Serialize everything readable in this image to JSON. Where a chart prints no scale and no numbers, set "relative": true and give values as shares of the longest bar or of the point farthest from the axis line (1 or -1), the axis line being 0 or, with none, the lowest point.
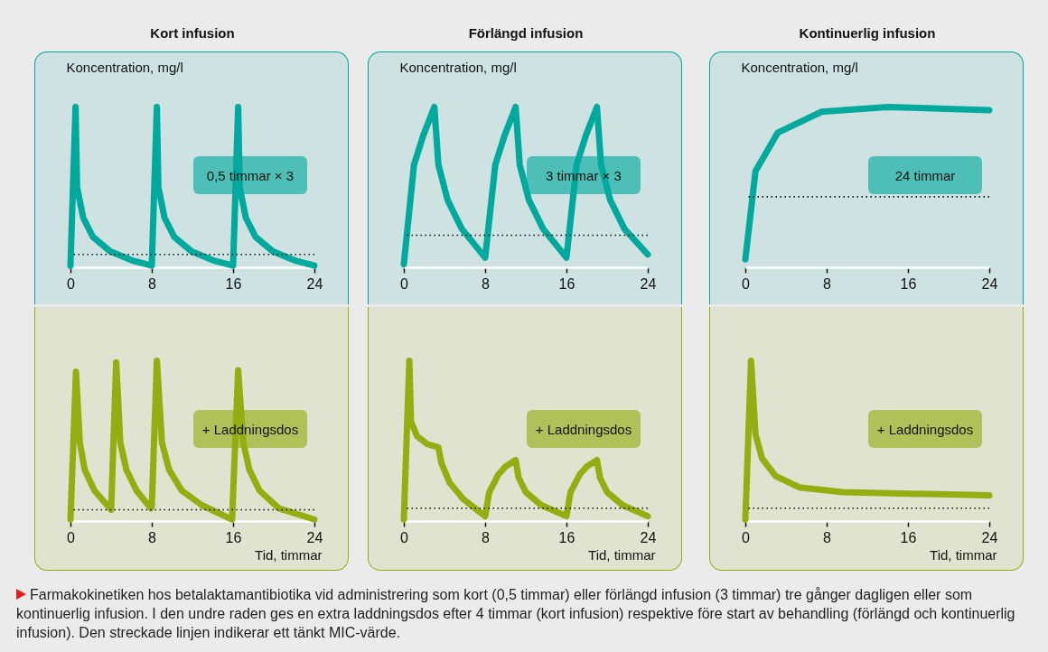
{
  "chart_data": [
    {
      "type": "line",
      "title": "Kort infusion",
      "ylabel": "Koncentration, mg/l",
      "relative": true,
      "color": "#00a99d",
      "xlim": [
        0,
        24
      ],
      "xticks": [
        0,
        8,
        16,
        24
      ],
      "x": [
        0,
        0.5,
        0.65,
        1.25,
        2.2,
        3.9,
        6.2,
        8,
        8.5,
        8.65,
        9.25,
        10.2,
        11.9,
        14.2,
        16,
        16.5,
        16.65,
        17.25,
        18.2,
        19.9,
        22.2,
        24
      ],
      "values": [
        0.01,
        1,
        0.5,
        0.31,
        0.19,
        0.1,
        0.04,
        0.01,
        1,
        0.5,
        0.31,
        0.19,
        0.1,
        0.04,
        0.01,
        1,
        0.5,
        0.31,
        0.19,
        0.1,
        0.04,
        0.01
      ],
      "ref_lines": [
        {
          "axis": "y",
          "value": 0.08,
          "line_style": "dotted"
        }
      ],
      "annotations": [
        "0,5 timmar × 3"
      ]
    },
    {
      "type": "line",
      "title": "Förlängd infusion",
      "ylabel": "Koncentration, mg/l",
      "relative": true,
      "color": "#00a99d",
      "xlim": [
        0,
        24
      ],
      "xticks": [
        0,
        8,
        16,
        24
      ],
      "x": [
        0,
        1,
        1.9,
        3,
        3.4,
        4.3,
        5.7,
        8,
        9,
        9.9,
        11,
        11.4,
        12.3,
        13.7,
        16,
        17,
        17.9,
        19,
        19.4,
        20.3,
        21.7,
        24
      ],
      "values": [
        0.02,
        0.64,
        0.82,
        1,
        0.64,
        0.42,
        0.24,
        0.06,
        0.64,
        0.82,
        1,
        0.64,
        0.42,
        0.24,
        0.06,
        0.64,
        0.82,
        1,
        0.64,
        0.42,
        0.24,
        0.08
      ],
      "ref_lines": [
        {
          "axis": "y",
          "value": 0.2,
          "line_style": "dotted"
        }
      ],
      "annotations": [
        "3 timmar × 3"
      ]
    },
    {
      "type": "line",
      "title": "Kontinuerlig infusion",
      "ylabel": "Koncentration, mg/l",
      "relative": true,
      "color": "#00a99d",
      "xlim": [
        0,
        24
      ],
      "xticks": [
        0,
        8,
        16,
        24
      ],
      "x": [
        0,
        1,
        3.2,
        7.5,
        14,
        24
      ],
      "values": [
        0.05,
        0.6,
        0.84,
        0.97,
        1,
        0.98
      ],
      "ref_lines": [
        {
          "axis": "y",
          "value": 0.44,
          "line_style": "dotted"
        }
      ],
      "annotations": [
        "24 timmar"
      ]
    },
    {
      "type": "line",
      "xlabel": "Tid, timmar",
      "relative": true,
      "color": "#94ad10",
      "xlim": [
        0,
        24
      ],
      "xticks": [
        0,
        8,
        16,
        24
      ],
      "x": [
        0,
        0.54,
        0.92,
        1.4,
        2.36,
        4,
        4.5,
        4.9,
        5.5,
        6.5,
        7.9,
        8,
        8.5,
        9,
        9.7,
        10.95,
        12.9,
        15.9,
        16.5,
        17,
        17.6,
        18.6,
        20.5,
        24
      ],
      "values": [
        0.01,
        0.93,
        0.49,
        0.32,
        0.19,
        0.07,
        0.99,
        0.49,
        0.32,
        0.19,
        0.08,
        0.09,
        1,
        0.49,
        0.32,
        0.19,
        0.1,
        0.01,
        0.94,
        0.49,
        0.32,
        0.19,
        0.08,
        0.01
      ],
      "ref_lines": [
        {
          "axis": "y",
          "value": 0.07,
          "line_style": "dotted"
        }
      ],
      "annotations": [
        "+ Laddningsdos"
      ]
    },
    {
      "type": "line",
      "xlabel": "Tid, timmar",
      "relative": true,
      "color": "#94ad10",
      "xlim": [
        0,
        24
      ],
      "xticks": [
        0,
        8,
        16,
        24
      ],
      "x": [
        0,
        0.54,
        0.7,
        1.3,
        2.3,
        3.4,
        3.7,
        4.5,
        5.8,
        8,
        8.4,
        9.3,
        10,
        11,
        11.3,
        12,
        13.5,
        16,
        16.4,
        17.3,
        18,
        19,
        19.3,
        20,
        21.5,
        24
      ],
      "values": [
        0.01,
        1,
        0.62,
        0.53,
        0.48,
        0.46,
        0.36,
        0.24,
        0.14,
        0.03,
        0.18,
        0.29,
        0.34,
        0.38,
        0.27,
        0.18,
        0.1,
        0.03,
        0.18,
        0.29,
        0.34,
        0.38,
        0.27,
        0.18,
        0.1,
        0.03
      ],
      "ref_lines": [
        {
          "axis": "y",
          "value": 0.08,
          "line_style": "dotted"
        }
      ],
      "annotations": [
        "+ Laddningsdos"
      ]
    },
    {
      "type": "line",
      "xlabel": "Tid, timmar",
      "relative": true,
      "color": "#94ad10",
      "xlim": [
        0,
        24
      ],
      "xticks": [
        0,
        8,
        16,
        24
      ],
      "x": [
        0,
        0.56,
        1,
        1.65,
        3,
        5.3,
        9.6,
        24
      ],
      "values": [
        0.01,
        1,
        0.54,
        0.39,
        0.28,
        0.21,
        0.18,
        0.16
      ],
      "ref_lines": [
        {
          "axis": "y",
          "value": 0.08,
          "line_style": "dotted"
        }
      ],
      "annotations": [
        "+ Laddningsdos",
        "Farmakokinetiken hos betalaktamantibiotika vid administrering som kort (0,5 timmar) eller förlängd infusion (3 timmar) tre gånger dagligen eller som kontinuerlig infusion. I den undre raden ges en extra laddningsdos efter 4 timmar (kort infusion) respektive före start av behandling (förlängd och kontinuerlig infusion). Den streckade linjen indikerar ett tänkt MIC-värde."
      ]
    }
  ]
}
